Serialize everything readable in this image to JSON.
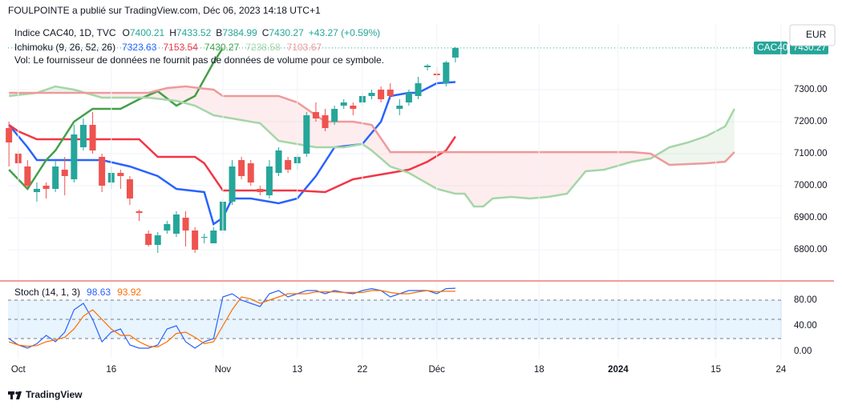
{
  "header": "FOULPOINTE a publié sur TradingView.com, Déc 06, 2023 14:18 UTC+1",
  "legend": {
    "symbol": "Indice CAC40, 1D, TVC",
    "ohlc": [
      {
        "key": "O",
        "text": "7400.21"
      },
      {
        "key": "H",
        "text": "7433.52"
      },
      {
        "key": "B",
        "text": "7384.99"
      },
      {
        "key": "C",
        "text": "7430.27"
      }
    ],
    "change": "+43.27 (+0.59%)",
    "ichimoku": "Ichimoku (9, 26, 52, 26)",
    "ichimoku_values": [
      "7323.63",
      "7153.54",
      "7430.27",
      "7238.58",
      "7103.67"
    ],
    "volume_note": "Vol: Le fournisseur de données ne fournit pas de données de volume pour ce symbole.",
    "stoch": "Stoch (14, 1, 3)",
    "stoch_values": [
      "98.63",
      "93.92"
    ]
  },
  "currency": "EUR",
  "symbol_tag": "CAC40",
  "footer": {
    "brand": "TradingView"
  },
  "chart_data": [
    {
      "type": "candlestick",
      "xlim": [
        -1.1,
        82.1
      ],
      "ylim": [
        6705,
        7505
      ],
      "yticks": [
        {
          "value": 6800,
          "label": "6800.00"
        },
        {
          "value": 6900,
          "label": "6900.00"
        },
        {
          "value": 7000,
          "label": "7000.00"
        },
        {
          "value": 7100,
          "label": "7100.00"
        },
        {
          "value": 7200,
          "label": "7200.00"
        },
        {
          "value": 7300,
          "label": "7300.00"
        }
      ],
      "grid": true,
      "up_color": "#26a69a",
      "down_color": "#ef5350",
      "candles": [
        {
          "x": -1,
          "o": 7180,
          "h": 7200,
          "l": 7060,
          "c": 7135
        },
        {
          "x": 0,
          "o": 7100,
          "h": 7110,
          "l": 7010,
          "c": 7070
        },
        {
          "x": 1,
          "o": 7060,
          "h": 7080,
          "l": 6990,
          "c": 7000
        },
        {
          "x": 2,
          "o": 6980,
          "h": 7010,
          "l": 6950,
          "c": 6990
        },
        {
          "x": 3,
          "o": 7000,
          "h": 7010,
          "l": 6960,
          "c": 6990
        },
        {
          "x": 4,
          "o": 6990,
          "h": 7080,
          "l": 6980,
          "c": 7060
        },
        {
          "x": 5,
          "o": 7050,
          "h": 7090,
          "l": 6970,
          "c": 7030
        },
        {
          "x": 6,
          "o": 7020,
          "h": 7190,
          "l": 7010,
          "c": 7160
        },
        {
          "x": 7,
          "o": 7120,
          "h": 7210,
          "l": 7110,
          "c": 7190
        },
        {
          "x": 8,
          "o": 7190,
          "h": 7230,
          "l": 7100,
          "c": 7110
        },
        {
          "x": 9,
          "o": 7090,
          "h": 7100,
          "l": 6980,
          "c": 7000
        },
        {
          "x": 10,
          "o": 7010,
          "h": 7060,
          "l": 6990,
          "c": 7040
        },
        {
          "x": 11,
          "o": 7040,
          "h": 7050,
          "l": 6990,
          "c": 7030
        },
        {
          "x": 12,
          "o": 7020,
          "h": 7030,
          "l": 6940,
          "c": 6960
        },
        {
          "x": 13,
          "o": 6920,
          "h": 6925,
          "l": 6890,
          "c": 6915
        },
        {
          "x": 14,
          "o": 6850,
          "h": 6860,
          "l": 6810,
          "c": 6815
        },
        {
          "x": 15,
          "o": 6815,
          "h": 6855,
          "l": 6790,
          "c": 6845
        },
        {
          "x": 16,
          "o": 6860,
          "h": 6890,
          "l": 6850,
          "c": 6880
        },
        {
          "x": 17,
          "o": 6850,
          "h": 6920,
          "l": 6840,
          "c": 6910
        },
        {
          "x": 18,
          "o": 6900,
          "h": 6920,
          "l": 6810,
          "c": 6860
        },
        {
          "x": 19,
          "o": 6860,
          "h": 6870,
          "l": 6790,
          "c": 6800
        },
        {
          "x": 20,
          "o": 6840,
          "h": 6850,
          "l": 6820,
          "c": 6840
        },
        {
          "x": 21,
          "o": 6820,
          "h": 6870,
          "l": 6820,
          "c": 6860
        },
        {
          "x": 22,
          "o": 6860,
          "h": 6960,
          "l": 6850,
          "c": 6950
        },
        {
          "x": 23,
          "o": 6950,
          "h": 7080,
          "l": 6940,
          "c": 7060
        },
        {
          "x": 24,
          "o": 7080,
          "h": 7090,
          "l": 7020,
          "c": 7030
        },
        {
          "x": 25,
          "o": 7070,
          "h": 7080,
          "l": 7000,
          "c": 7010
        },
        {
          "x": 26,
          "o": 6990,
          "h": 7000,
          "l": 6970,
          "c": 6980
        },
        {
          "x": 27,
          "o": 6970,
          "h": 7080,
          "l": 6960,
          "c": 7060
        },
        {
          "x": 28,
          "o": 7040,
          "h": 7120,
          "l": 7030,
          "c": 7110
        },
        {
          "x": 29,
          "o": 7080,
          "h": 7090,
          "l": 7040,
          "c": 7050
        },
        {
          "x": 30,
          "o": 7070,
          "h": 7100,
          "l": 7050,
          "c": 7090
        },
        {
          "x": 31,
          "o": 7100,
          "h": 7230,
          "l": 7090,
          "c": 7220
        },
        {
          "x": 32,
          "o": 7230,
          "h": 7260,
          "l": 7200,
          "c": 7210
        },
        {
          "x": 33,
          "o": 7220,
          "h": 7240,
          "l": 7170,
          "c": 7180
        },
        {
          "x": 34,
          "o": 7200,
          "h": 7250,
          "l": 7190,
          "c": 7240
        },
        {
          "x": 35,
          "o": 7250,
          "h": 7270,
          "l": 7240,
          "c": 7260
        },
        {
          "x": 36,
          "o": 7250,
          "h": 7260,
          "l": 7220,
          "c": 7240
        },
        {
          "x": 37,
          "o": 7260,
          "h": 7290,
          "l": 7250,
          "c": 7280
        },
        {
          "x": 38,
          "o": 7280,
          "h": 7300,
          "l": 7270,
          "c": 7290
        },
        {
          "x": 39,
          "o": 7300,
          "h": 7310,
          "l": 7260,
          "c": 7270
        },
        {
          "x": 40,
          "o": 7300,
          "h": 7320,
          "l": 7270,
          "c": 7280
        },
        {
          "x": 41,
          "o": 7240,
          "h": 7270,
          "l": 7220,
          "c": 7250
        },
        {
          "x": 42,
          "o": 7260,
          "h": 7300,
          "l": 7250,
          "c": 7290
        },
        {
          "x": 43,
          "o": 7280,
          "h": 7340,
          "l": 7270,
          "c": 7320
        },
        {
          "x": 44,
          "o": 7370,
          "h": 7380,
          "l": 7360,
          "c": 7375
        },
        {
          "x": 45,
          "o": 7350,
          "h": 7370,
          "l": 7330,
          "c": 7345
        },
        {
          "x": 46,
          "o": 7320,
          "h": 7390,
          "l": 7310,
          "c": 7385
        },
        {
          "x": 47,
          "o": 7400.21,
          "h": 7433.52,
          "l": 7384.99,
          "c": 7430.27
        }
      ],
      "series": [
        {
          "name": "Conversion",
          "color": "#2962ff",
          "x": [
            -1,
            1,
            2,
            9,
            12,
            15,
            17,
            20,
            21,
            22,
            23,
            25,
            28,
            30,
            32,
            34,
            37,
            39,
            40,
            42,
            43,
            45,
            47
          ],
          "values": [
            7190,
            7120,
            7080,
            7080,
            7060,
            7030,
            6990,
            6980,
            6880,
            6900,
            6960,
            6960,
            6945,
            6960,
            7030,
            7120,
            7130,
            7200,
            7280,
            7290,
            7290,
            7320,
            7323.63
          ]
        },
        {
          "name": "Base",
          "color": "#f23645",
          "x": [
            -1,
            0,
            2,
            8,
            13,
            15,
            19,
            20,
            22,
            30,
            33,
            36,
            40,
            42,
            44,
            46,
            47
          ],
          "values": [
            7190,
            7170,
            7145,
            7145,
            7145,
            7090,
            7090,
            7070,
            6985,
            6985,
            6980,
            7020,
            7040,
            7050,
            7075,
            7110,
            7153.54
          ]
        },
        {
          "name": "Lagging",
          "color": "#43a047",
          "x": [
            -1,
            1,
            3,
            4,
            6,
            8,
            11,
            13,
            15,
            17,
            19,
            21,
            22
          ],
          "values": [
            7050,
            6990,
            7080,
            7110,
            7200,
            7240,
            7240,
            7270,
            7295,
            7250,
            7280,
            7385,
            7430.27
          ]
        },
        {
          "name": "Span A",
          "color": "#a5d6a7",
          "x": [
            -1,
            2,
            4,
            6,
            9,
            14,
            17,
            19,
            21,
            23,
            26,
            28,
            30,
            32,
            35,
            37,
            38,
            40,
            42,
            45,
            47,
            48,
            49,
            50,
            51,
            53,
            55,
            57,
            59,
            61,
            63,
            66,
            68,
            70,
            72,
            74,
            76,
            77
          ],
          "values": [
            7280,
            7290,
            7310,
            7300,
            7275,
            7275,
            7265,
            7250,
            7220,
            7210,
            7195,
            7140,
            7130,
            7120,
            7120,
            7130,
            7110,
            7060,
            7040,
            6990,
            6975,
            6975,
            6935,
            6935,
            6960,
            6965,
            6960,
            6965,
            6975,
            7045,
            7050,
            7075,
            7085,
            7120,
            7135,
            7155,
            7185,
            7240
          ]
        },
        {
          "name": "Span B",
          "color": "#ef9a9a",
          "x": [
            -1,
            14,
            16,
            18,
            21,
            22,
            28,
            30,
            33,
            36,
            38,
            40,
            48,
            57,
            66,
            68,
            70,
            74,
            76,
            77
          ],
          "values": [
            7290,
            7290,
            7305,
            7310,
            7300,
            7280,
            7280,
            7260,
            7200,
            7200,
            7190,
            7105,
            7105,
            7105,
            7105,
            7100,
            7065,
            7070,
            7075,
            7105
          ]
        }
      ]
    },
    {
      "type": "line",
      "xlim": [
        -1.1,
        82.1
      ],
      "ylim": [
        -11.25,
        108.75
      ],
      "yticks": [
        {
          "value": 0,
          "label": "0.00"
        },
        {
          "value": 40,
          "label": "40.00"
        },
        {
          "value": 80,
          "label": "80.00"
        }
      ],
      "bands": [
        20,
        50,
        80
      ],
      "xticks": [
        {
          "value": 0,
          "label": "Oct"
        },
        {
          "value": 10,
          "label": "16"
        },
        {
          "value": 22,
          "label": "Nov"
        },
        {
          "value": 30,
          "label": "13"
        },
        {
          "value": 37,
          "label": "22"
        },
        {
          "value": 45,
          "label": "Déc"
        },
        {
          "value": 56,
          "label": "18"
        },
        {
          "value": 64.5,
          "label": "2024"
        },
        {
          "value": 75,
          "label": "15"
        },
        {
          "value": 82,
          "label": "24"
        }
      ],
      "series": [
        {
          "name": "%K",
          "color": "#2962ff",
          "x": [
            -1,
            0,
            1,
            2,
            3,
            4,
            5,
            6,
            7,
            8,
            9,
            10,
            11,
            12,
            13,
            14,
            15,
            16,
            17,
            18,
            19,
            20,
            21,
            22,
            23,
            24,
            25,
            26,
            27,
            28,
            29,
            30,
            31,
            32,
            33,
            34,
            35,
            36,
            37,
            38,
            39,
            40,
            41,
            42,
            43,
            44,
            45,
            46,
            47
          ],
          "values": [
            20,
            10,
            5,
            12,
            25,
            15,
            30,
            65,
            75,
            50,
            15,
            30,
            35,
            10,
            5,
            5,
            10,
            35,
            40,
            15,
            5,
            15,
            20,
            85,
            90,
            80,
            75,
            70,
            90,
            95,
            85,
            90,
            95,
            95,
            90,
            95,
            92,
            90,
            95,
            98,
            95,
            85,
            90,
            95,
            95,
            95,
            90,
            98,
            98.63
          ]
        },
        {
          "name": "%D",
          "color": "#ff6d00",
          "x": [
            -1,
            0,
            1,
            2,
            3,
            4,
            5,
            6,
            7,
            8,
            9,
            10,
            11,
            12,
            13,
            14,
            15,
            16,
            17,
            18,
            19,
            20,
            21,
            22,
            23,
            24,
            25,
            26,
            27,
            28,
            29,
            30,
            31,
            32,
            33,
            34,
            35,
            36,
            37,
            38,
            39,
            40,
            41,
            42,
            43,
            44,
            45,
            46,
            47
          ],
          "values": [
            15,
            10,
            8,
            9,
            15,
            18,
            22,
            35,
            55,
            65,
            50,
            35,
            25,
            25,
            15,
            8,
            7,
            15,
            28,
            30,
            22,
            12,
            15,
            40,
            65,
            85,
            82,
            75,
            80,
            85,
            90,
            90,
            90,
            93,
            93,
            93,
            92,
            92,
            92,
            95,
            95,
            92,
            90,
            90,
            93,
            95,
            93,
            94,
            93.92
          ]
        }
      ]
    }
  ]
}
